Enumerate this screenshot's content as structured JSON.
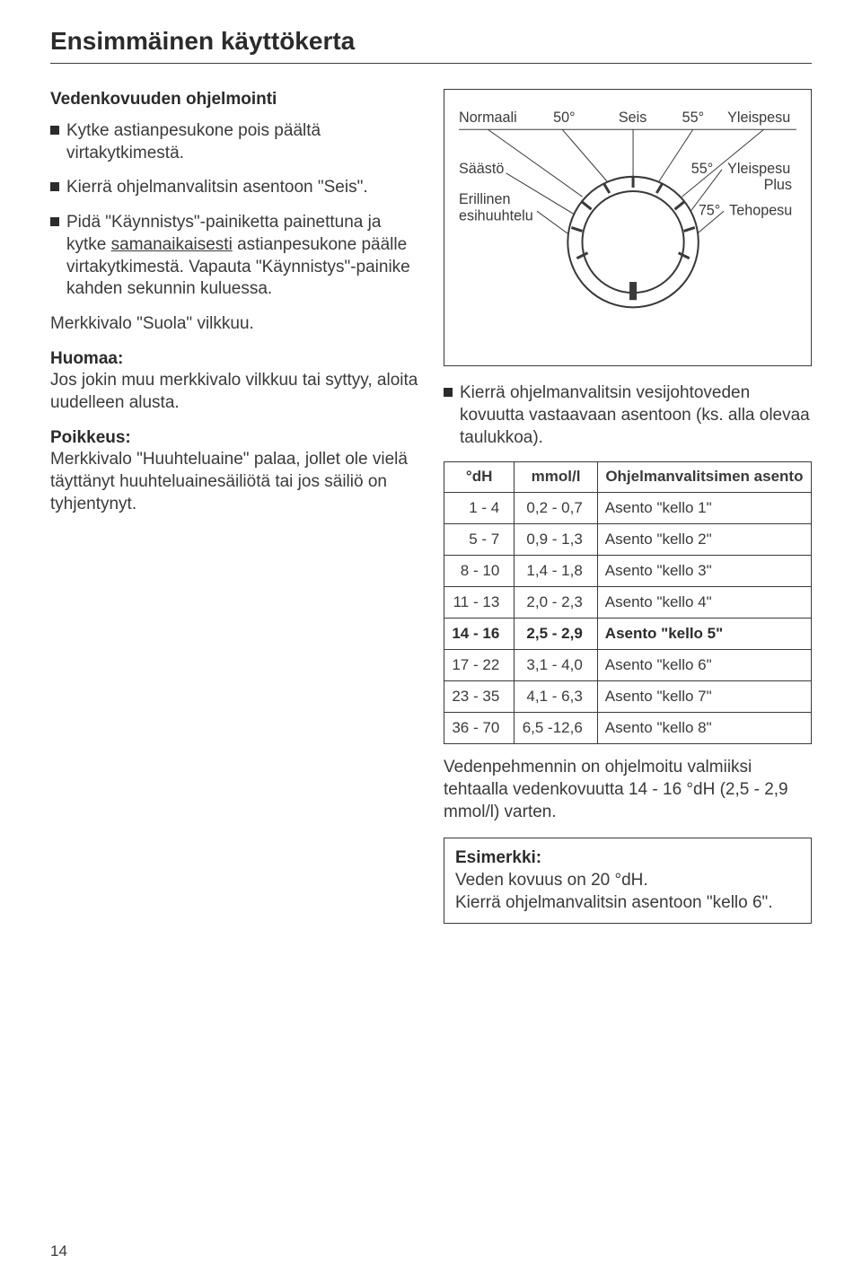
{
  "title": "Ensimmäinen käyttökerta",
  "left": {
    "subhead": "Vedenkovuuden ohjelmointi",
    "b1": "Kytke astianpesukone pois päältä virtakytkimestä.",
    "b2": "Kierrä ohjelmanvalitsin asentoon \"Seis\".",
    "b3_pre": "Pidä \"Käynnistys\"-painiketta painettuna ja kytke ",
    "b3_underline": "samanaikaisesti",
    "b3_post": " astianpesukone päälle virtakytkimestä. Vapauta \"Käynnistys\"-painike kahden sekunnin kuluessa.",
    "p1": "Merkkivalo \"Suola\" vilkkuu.",
    "note_label": "Huomaa:",
    "note_body": "Jos jokin muu merkkivalo vilkkuu tai syttyy, aloita uudelleen alusta.",
    "exc_label": "Poikkeus:",
    "exc_body": "Merkkivalo \"Huuhteluaine\" palaa, jollet ole vielä täyttänyt huuhteluainesäiliötä tai jos säiliö on tyhjentynyt."
  },
  "dial": {
    "labels": {
      "normaali": "Normaali",
      "fifty": "50°",
      "seis": "Seis",
      "fiftyfive_top": "55°",
      "yleispesu": "Yleispesu",
      "saasto": "Säästö",
      "fiftyfive_right": "55°",
      "yleispesu_plus1": "Yleispesu",
      "yleispesu_plus2": "Plus",
      "erillinen1": "Erillinen",
      "erillinen2": "esihuuhtelu",
      "seventyfive": "75°",
      "tehopesu": "Tehopesu"
    },
    "colors": {
      "stroke": "#3a3a3a",
      "bg": "#ffffff",
      "tick": "#3a3a3a"
    }
  },
  "right": {
    "b1": "Kierrä ohjelmanvalitsin vesijohtoveden kovuutta vastaavaan asentoon (ks. alla olevaa taulukkoa).",
    "table": {
      "headers": {
        "dh": "°dH",
        "mmol": "mmol/l",
        "asento": "Ohjelmanvalitsimen asento"
      },
      "rows": [
        {
          "dh": "1 -  4",
          "mmol": "0,2 -  0,7",
          "asento": "Asento \"kello 1\"",
          "bold": false
        },
        {
          "dh": "5 -  7",
          "mmol": "0,9 -  1,3",
          "asento": "Asento \"kello 2\"",
          "bold": false
        },
        {
          "dh": "8 - 10",
          "mmol": "1,4 -  1,8",
          "asento": "Asento \"kello 3\"",
          "bold": false
        },
        {
          "dh": "11 - 13",
          "mmol": "2,0 -  2,3",
          "asento": "Asento \"kello 4\"",
          "bold": false
        },
        {
          "dh": "14 - 16",
          "mmol": "2,5 -  2,9",
          "asento": "Asento \"kello 5\"",
          "bold": true
        },
        {
          "dh": "17 - 22",
          "mmol": "3,1 -  4,0",
          "asento": "Asento \"kello 6\"",
          "bold": false
        },
        {
          "dh": "23 - 35",
          "mmol": "4,1 -  6,3",
          "asento": "Asento \"kello 7\"",
          "bold": false
        },
        {
          "dh": "36 - 70",
          "mmol": "6,5 -12,6",
          "asento": "Asento \"kello 8\"",
          "bold": false
        }
      ]
    },
    "after_table": "Vedenpehmennin on ohjelmoitu valmiiksi tehtaalla vedenkovuutta 14 - 16 °dH (2,5 - 2,9 mmol/l) varten.",
    "example_label": "Esimerkki:",
    "example_body1": "Veden kovuus on 20 °dH.",
    "example_body2": "Kierrä ohjelmanvalitsin asentoon \"kello 6\"."
  },
  "page_number": "14"
}
